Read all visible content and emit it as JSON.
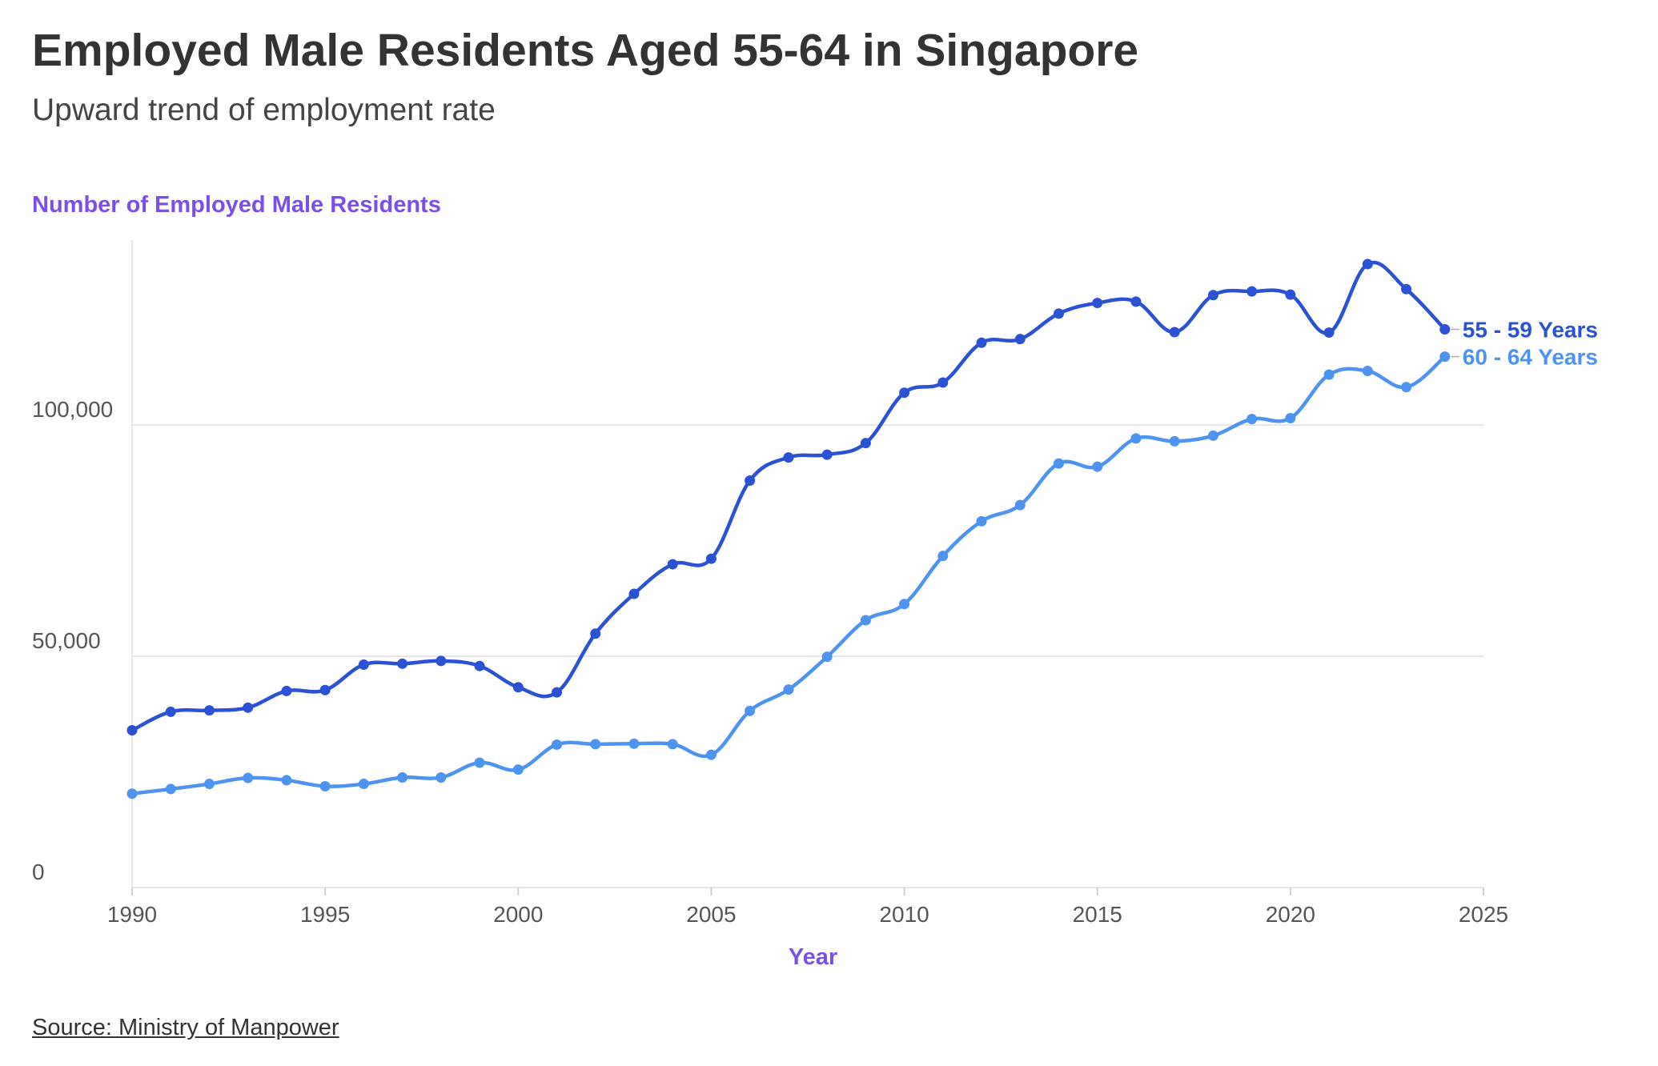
{
  "title": "Employed Male Residents Aged 55-64 in Singapore",
  "subtitle": "Upward trend of employment rate",
  "source": "Source: Ministry of Manpower",
  "colors": {
    "accent": "#7b4ee8",
    "series_55_59": "#2a52d4",
    "series_60_64": "#4d94f0",
    "grid": "#e6e6e6"
  },
  "chart_data": {
    "type": "line",
    "ylabel": "Number of Employed Male Residents",
    "xlabel": "Year",
    "xlim": [
      1990,
      2025
    ],
    "ylim": [
      0,
      140000
    ],
    "x_ticks": [
      "1990",
      "1995",
      "2000",
      "2005",
      "2010",
      "2015",
      "2020",
      "2025"
    ],
    "y_ticks": [
      "0",
      "50,000",
      "100,000"
    ],
    "grid": "horizontal",
    "x": [
      1990,
      1991,
      1992,
      1993,
      1994,
      1995,
      1996,
      1997,
      1998,
      1999,
      2000,
      2001,
      2002,
      2003,
      2004,
      2005,
      2006,
      2007,
      2008,
      2009,
      2010,
      2011,
      2012,
      2013,
      2014,
      2015,
      2016,
      2017,
      2018,
      2019,
      2020,
      2021,
      2022,
      2023,
      2024
    ],
    "series": [
      {
        "name": "55 - 59 Years",
        "values": [
          34000,
          38000,
          38300,
          38900,
          42500,
          42700,
          48200,
          48400,
          49000,
          47900,
          43300,
          42200,
          54900,
          63500,
          69900,
          71100,
          88000,
          93000,
          93600,
          96100,
          107000,
          109200,
          117800,
          118600,
          124100,
          126400,
          126700,
          120100,
          128100,
          128900,
          128200,
          120000,
          134800,
          129400,
          120700
        ]
      },
      {
        "name": "60 - 64 Years",
        "values": [
          20300,
          21300,
          22400,
          23700,
          23200,
          21900,
          22400,
          23800,
          23800,
          27000,
          25500,
          30900,
          31000,
          31100,
          31000,
          28700,
          38200,
          42800,
          49900,
          57800,
          61300,
          71700,
          79200,
          82700,
          91700,
          91000,
          97100,
          96500,
          97700,
          101300,
          101500,
          110900,
          111700,
          108200,
          114800
        ]
      }
    ]
  }
}
